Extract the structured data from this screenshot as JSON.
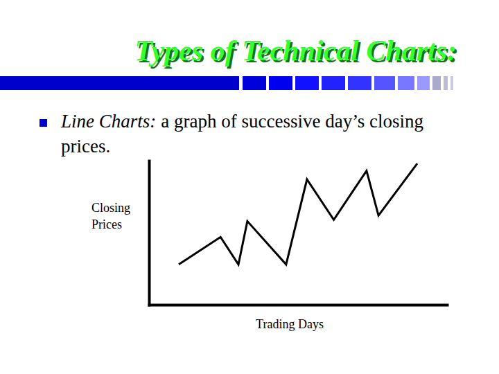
{
  "slide": {
    "title": "Types of Technical Charts:",
    "bullet_term": "Line Charts:",
    "bullet_lines": [
      "a graph of successive day’s closing",
      "prices."
    ]
  },
  "chart_data": {
    "type": "line",
    "xlabel": "Trading Days",
    "ylabel": "Closing Prices",
    "x": [
      10,
      24,
      30,
      33,
      46,
      53,
      62,
      73,
      77,
      90
    ],
    "values": [
      28,
      47,
      28,
      58,
      28,
      87,
      59,
      93,
      62,
      98
    ],
    "color": "#000000",
    "xlim": [
      0,
      100
    ],
    "ylim": [
      0,
      100
    ],
    "tick_labels": false
  }
}
